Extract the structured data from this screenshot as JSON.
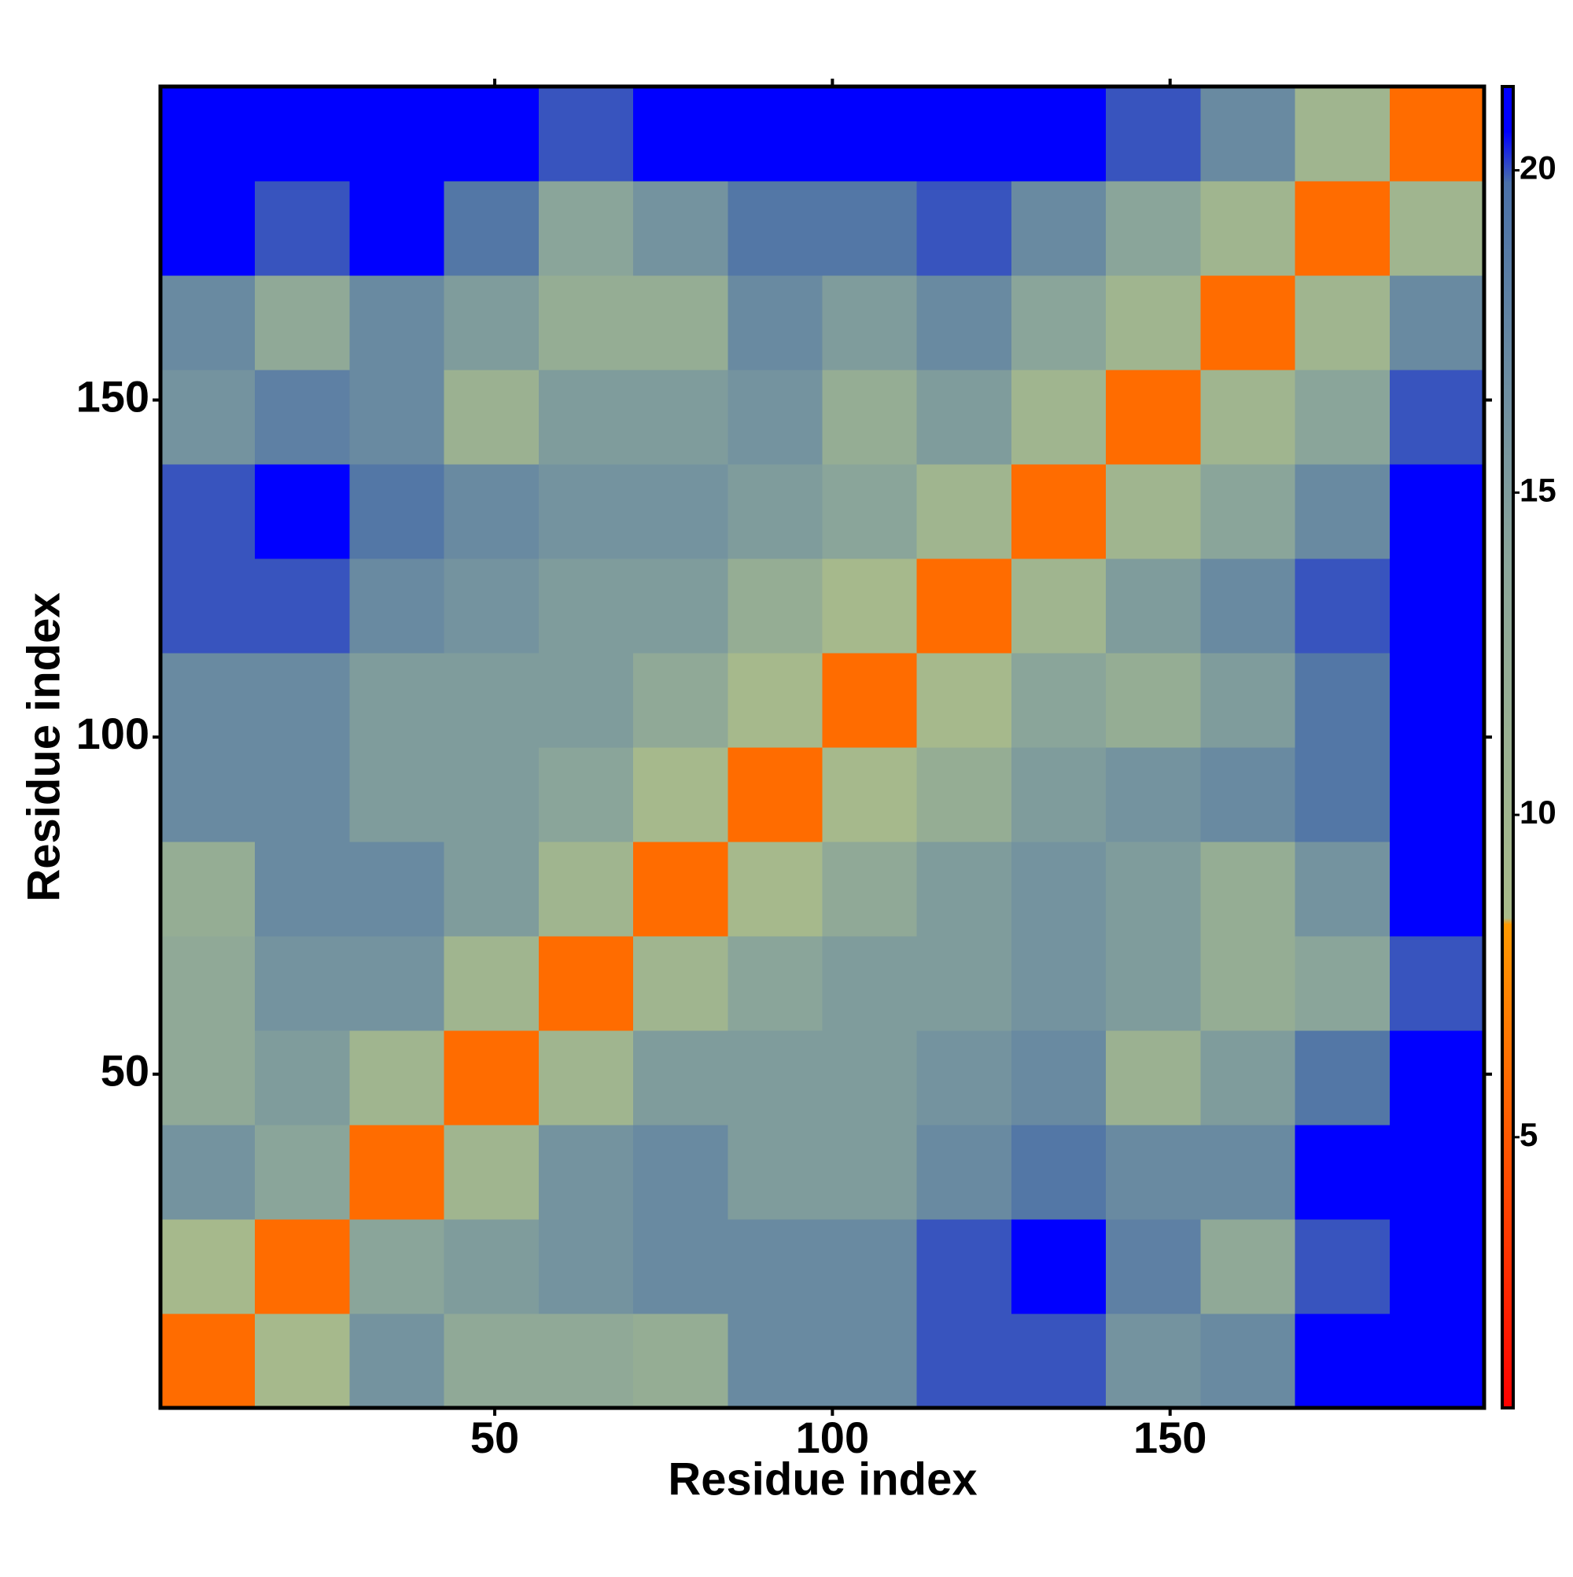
{
  "chart_data": {
    "type": "heatmap",
    "x_label": "Residue index",
    "y_label": "Residue index",
    "xbins": [
      0.5,
      14.5,
      28.5,
      42.5,
      56.5,
      70.5,
      84.5,
      98.5,
      112.5,
      126.5,
      140.5,
      154.5,
      168.5,
      182.5,
      196.5
    ],
    "ybins": [
      0.5,
      14.5,
      28.5,
      42.5,
      56.5,
      70.5,
      84.5,
      98.5,
      112.5,
      126.5,
      140.5,
      154.5,
      168.5,
      182.5,
      196.5
    ],
    "z": [
      [
        6,
        9,
        16,
        13,
        13,
        12,
        17,
        17,
        20,
        20,
        16,
        17,
        21,
        21
      ],
      [
        9,
        6,
        14,
        15,
        16,
        17,
        17,
        17,
        20,
        21,
        18,
        13,
        20,
        21
      ],
      [
        16,
        14,
        6,
        10,
        16,
        17,
        15,
        15,
        17,
        19,
        17,
        17,
        21,
        21
      ],
      [
        13,
        15,
        10,
        6,
        10,
        15,
        15,
        15,
        16,
        17,
        11,
        15,
        19,
        21
      ],
      [
        13,
        16,
        16,
        10,
        6,
        10,
        14,
        15,
        15,
        16,
        15,
        12,
        14,
        20
      ],
      [
        12,
        17,
        17,
        15,
        10,
        6,
        9,
        13,
        15,
        16,
        15,
        12,
        16,
        21
      ],
      [
        17,
        17,
        15,
        15,
        14,
        9,
        6,
        9,
        12,
        15,
        16,
        17,
        19,
        21
      ],
      [
        17,
        17,
        15,
        15,
        15,
        13,
        9,
        6,
        9,
        14,
        12,
        15,
        19,
        21
      ],
      [
        20,
        20,
        17,
        16,
        15,
        15,
        12,
        9,
        6,
        10,
        15,
        17,
        20,
        21
      ],
      [
        20,
        21,
        19,
        17,
        16,
        16,
        15,
        14,
        10,
        6,
        10,
        14,
        17,
        21
      ],
      [
        16,
        18,
        17,
        11,
        15,
        15,
        16,
        12,
        15,
        10,
        6,
        10,
        14,
        20
      ],
      [
        17,
        13,
        17,
        15,
        12,
        12,
        17,
        15,
        17,
        14,
        10,
        6,
        10,
        17
      ],
      [
        21,
        20,
        21,
        19,
        14,
        16,
        19,
        19,
        20,
        17,
        14,
        10,
        6,
        10
      ],
      [
        21,
        21,
        21,
        21,
        20,
        21,
        21,
        21,
        21,
        21,
        20,
        17,
        10,
        6
      ]
    ],
    "xlim": [
      0.5,
      196.5
    ],
    "ylim": [
      0.5,
      196.5
    ],
    "xticks": [
      50,
      100,
      150
    ],
    "yticks": [
      50,
      100,
      150
    ],
    "zlim": [
      0.8,
      21.3
    ],
    "zticks": [
      5,
      10,
      15,
      20
    ],
    "colorscale": [
      [
        0.8,
        "#ff0000"
      ],
      [
        4,
        "#ff4400"
      ],
      [
        8.3,
        "#ff9900"
      ],
      [
        8.4,
        "#a9bb8a"
      ],
      [
        14,
        "#8aa59a"
      ],
      [
        19.8,
        "#4a70a8"
      ],
      [
        20.6,
        "#0000ff"
      ],
      [
        21.3,
        "#0000ff"
      ]
    ]
  }
}
